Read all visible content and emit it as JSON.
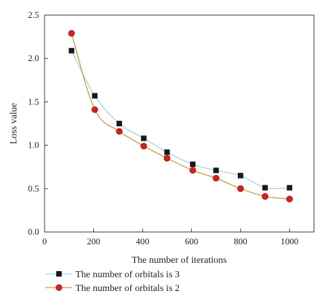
{
  "chart_data": {
    "type": "line",
    "title": "",
    "xlabel": "The number of iterations",
    "ylabel": "Loss value",
    "xlim": [
      0,
      1100
    ],
    "ylim": [
      0,
      2.5
    ],
    "x_ticks": [
      0,
      200,
      400,
      600,
      800,
      1000
    ],
    "x_tick_labels": [
      "0",
      "200",
      "400",
      "600",
      "800",
      "1000"
    ],
    "y_ticks": [
      0,
      0.5,
      1.0,
      1.5,
      2.0,
      2.5
    ],
    "y_tick_labels": [
      "0.0",
      "0.5",
      "1.0",
      "1.5",
      "2.0",
      "2.5"
    ],
    "grid": false,
    "legend_position": "bottom",
    "x": [
      110,
      205,
      305,
      405,
      500,
      605,
      700,
      800,
      900,
      1000
    ],
    "series": [
      {
        "name": "The number of orbitals is 3",
        "marker": "square",
        "marker_color": "#1a1a1a",
        "line_color": "#a6cfe6",
        "values": [
          2.09,
          1.57,
          1.25,
          1.08,
          0.92,
          0.78,
          0.71,
          0.65,
          0.51,
          0.51
        ]
      },
      {
        "name": "The number of orbitals is 2",
        "marker": "circle",
        "marker_color": "#d42020",
        "line_color": "#c8963e",
        "values": [
          2.29,
          1.41,
          1.16,
          0.99,
          0.85,
          0.71,
          0.62,
          0.5,
          0.41,
          0.38
        ]
      }
    ]
  }
}
